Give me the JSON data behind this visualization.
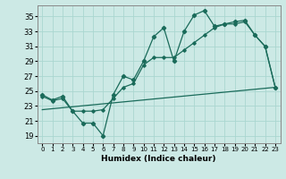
{
  "xlabel": "Humidex (Indice chaleur)",
  "bg_color": "#cce9e5",
  "grid_color": "#aad6d0",
  "line_color": "#1a6b5a",
  "xlim": [
    -0.5,
    23.5
  ],
  "ylim": [
    18.0,
    36.5
  ],
  "yticks": [
    19,
    21,
    23,
    25,
    27,
    29,
    31,
    33,
    35
  ],
  "xticks": [
    0,
    1,
    2,
    3,
    4,
    5,
    6,
    7,
    8,
    9,
    10,
    11,
    12,
    13,
    14,
    15,
    16,
    17,
    18,
    19,
    20,
    21,
    22,
    23
  ],
  "series1_x": [
    0,
    1,
    2,
    3,
    4,
    5,
    6,
    7,
    8,
    9,
    10,
    11,
    12,
    13,
    14,
    15,
    16,
    17,
    18,
    19,
    20,
    21,
    22,
    23
  ],
  "series1_y": [
    24.5,
    23.8,
    24.3,
    22.3,
    20.7,
    20.7,
    19.0,
    24.5,
    27.0,
    26.5,
    29.0,
    32.3,
    33.5,
    29.0,
    33.0,
    35.2,
    35.8,
    33.7,
    34.0,
    34.3,
    34.5,
    32.5,
    31.0,
    25.5
  ],
  "series2_x": [
    0,
    1,
    2,
    3,
    4,
    5,
    6,
    7,
    8,
    9,
    10,
    11,
    12,
    13,
    14,
    15,
    16,
    17,
    18,
    19,
    20,
    21,
    22,
    23
  ],
  "series2_y": [
    24.3,
    23.7,
    24.0,
    22.3,
    22.3,
    22.3,
    22.5,
    24.0,
    25.5,
    26.0,
    28.5,
    29.5,
    29.5,
    29.5,
    30.5,
    31.5,
    32.5,
    33.5,
    34.0,
    34.0,
    34.3,
    32.5,
    31.0,
    25.5
  ],
  "series3_x": [
    0,
    23
  ],
  "series3_y": [
    22.5,
    25.5
  ]
}
